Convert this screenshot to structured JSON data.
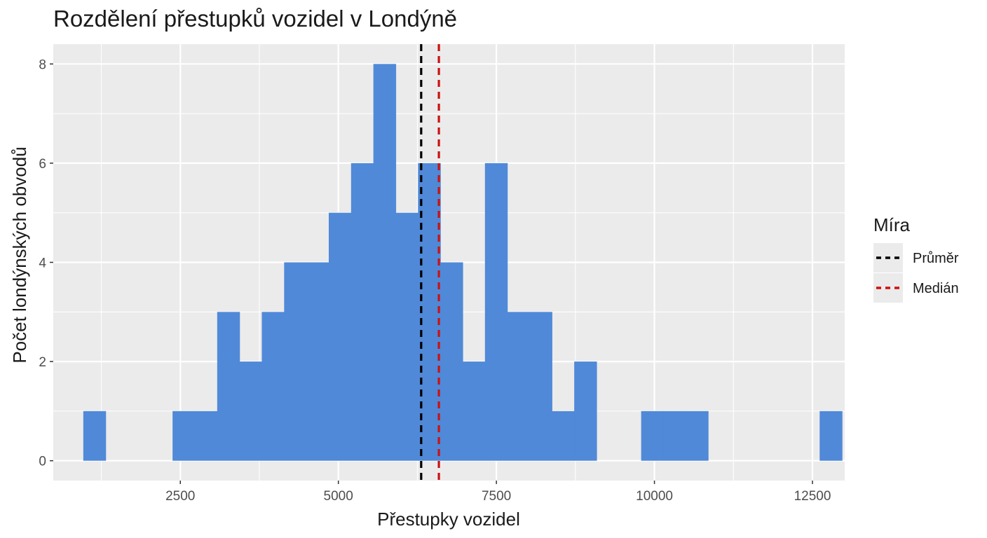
{
  "chart_data": {
    "type": "histogram",
    "title": "Rozdělení přestupků vozidel v Londýně",
    "xlabel": "Přestupky vozidel",
    "ylabel": "Počet londýnských obvodů",
    "xlim": [
      490,
      13010
    ],
    "ylim": [
      -0.4,
      8.4
    ],
    "x_ticks": [
      2500,
      5000,
      7500,
      10000,
      12500
    ],
    "x_tick_labels": [
      "2500",
      "5000",
      "7500",
      "10000",
      "12500"
    ],
    "y_ticks": [
      0,
      2,
      4,
      6,
      8
    ],
    "y_tick_labels": [
      "0",
      "2",
      "4",
      "6",
      "8"
    ],
    "grid": true,
    "bin_start": 965,
    "bin_width": 353,
    "counts": [
      1,
      0,
      0,
      0,
      1,
      1,
      3,
      2,
      3,
      4,
      4,
      5,
      6,
      8,
      5,
      6,
      4,
      2,
      6,
      3,
      3,
      1,
      2,
      0,
      0,
      1,
      1,
      1,
      0,
      0,
      0,
      0,
      0,
      1
    ],
    "bar_color": "#5089d8",
    "reference_lines": [
      {
        "name": "Průměr",
        "x": 6310,
        "color": "#000000",
        "style": "dashed"
      },
      {
        "name": "Medián",
        "x": 6590,
        "color": "#cc1111",
        "style": "dashed"
      }
    ],
    "legend": {
      "title": "Míra",
      "position": "right",
      "entries": [
        {
          "label": "Průměr",
          "color": "#000000"
        },
        {
          "label": "Medián",
          "color": "#cc1111"
        }
      ]
    },
    "panel_background": "#ebebeb",
    "grid_color": "#ffffff"
  }
}
